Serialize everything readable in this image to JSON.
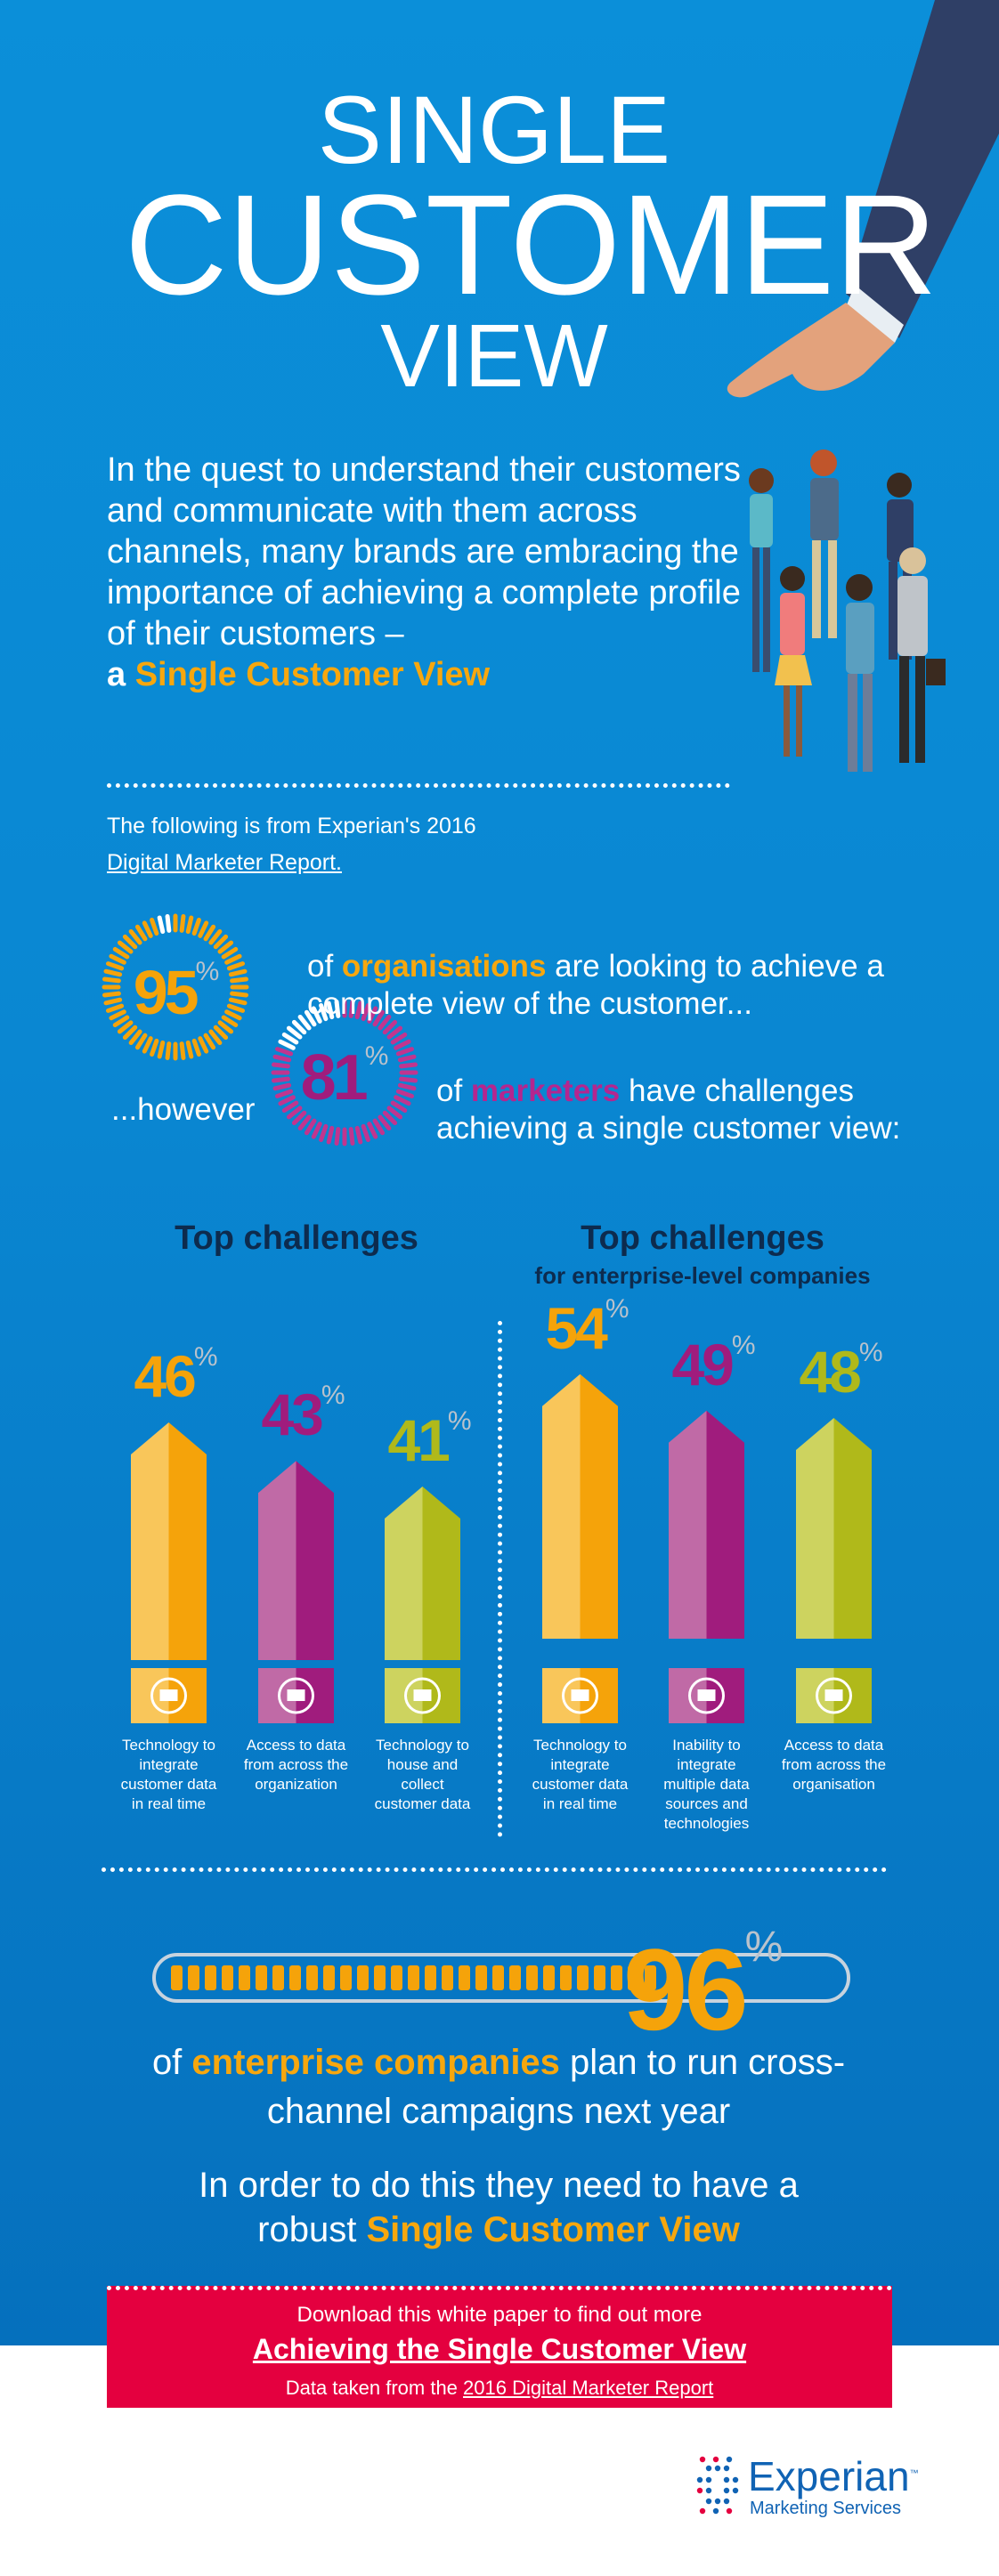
{
  "header": {
    "line1": "SINGLE",
    "line2": "CUSTOMER",
    "line3": "VIEW"
  },
  "intro": {
    "text": "In the quest to understand their customers and communicate with them across channels, many brands are embracing the importance of achieving a complete profile of their customers –",
    "prefix": "a ",
    "highlight": "Single Customer View"
  },
  "source": {
    "line1": "The following is from Experian's 2016",
    "link": "Digital Marketer Report."
  },
  "stat1": {
    "value": 95,
    "value_label": "95",
    "pct": "%",
    "pre": "of ",
    "highlight": "organisations",
    "post": " are looking to achieve a complete view of the customer..."
  },
  "stat2": {
    "lead": "...however",
    "value": 81,
    "value_label": "81",
    "pct": "%",
    "pre": "of ",
    "highlight": "marketers",
    "post": " have challenges achieving a single customer view:"
  },
  "colors": {
    "orange": "#f5a30a",
    "purple": "#a01c7d",
    "green": "#b0b91a",
    "red": "#e4003f",
    "navy": "#0d2b4e"
  },
  "chart_data": [
    {
      "type": "bar",
      "title": "Top challenges",
      "categories": [
        "Technology to integrate customer data in real time",
        "Access to data from across the organization",
        "Technology to house and collect customer data"
      ],
      "values": [
        46,
        43,
        41
      ],
      "unit": "%",
      "icons": [
        "users-plus-icon",
        "monitor-chart-icon",
        "monitor-bar-chart-icon"
      ],
      "colors": [
        "orange",
        "purple",
        "green"
      ]
    },
    {
      "type": "bar",
      "title": "Top challenges",
      "subtitle": "for enterprise-level companies",
      "categories": [
        "Technology to integrate customer data in real time",
        "Inability to integrate multiple data sources and technologies",
        "Access to data from across the organisation"
      ],
      "values": [
        54,
        49,
        48
      ],
      "unit": "%",
      "icons": [
        "users-plus-icon",
        "network-users-icon",
        "monitor-chart-icon"
      ],
      "colors": [
        "orange",
        "purple",
        "green"
      ]
    }
  ],
  "stat3": {
    "value": 96,
    "value_label": "96",
    "pct": "%",
    "pre": "of ",
    "highlight": "enterprise companies",
    "post": " plan to run cross-channel campaigns next year"
  },
  "stat4": {
    "text": "In order to do this they need to have a robust ",
    "highlight": "Single Customer View"
  },
  "cta": {
    "line1": "Download this white paper to find out more",
    "link": "Achieving the Single Customer View",
    "line3_pre": "Data taken from the ",
    "line3_link": "2016 Digital Marketer Report"
  },
  "logo": {
    "name": "Experian",
    "tm": "™",
    "sub": "Marketing Services"
  }
}
